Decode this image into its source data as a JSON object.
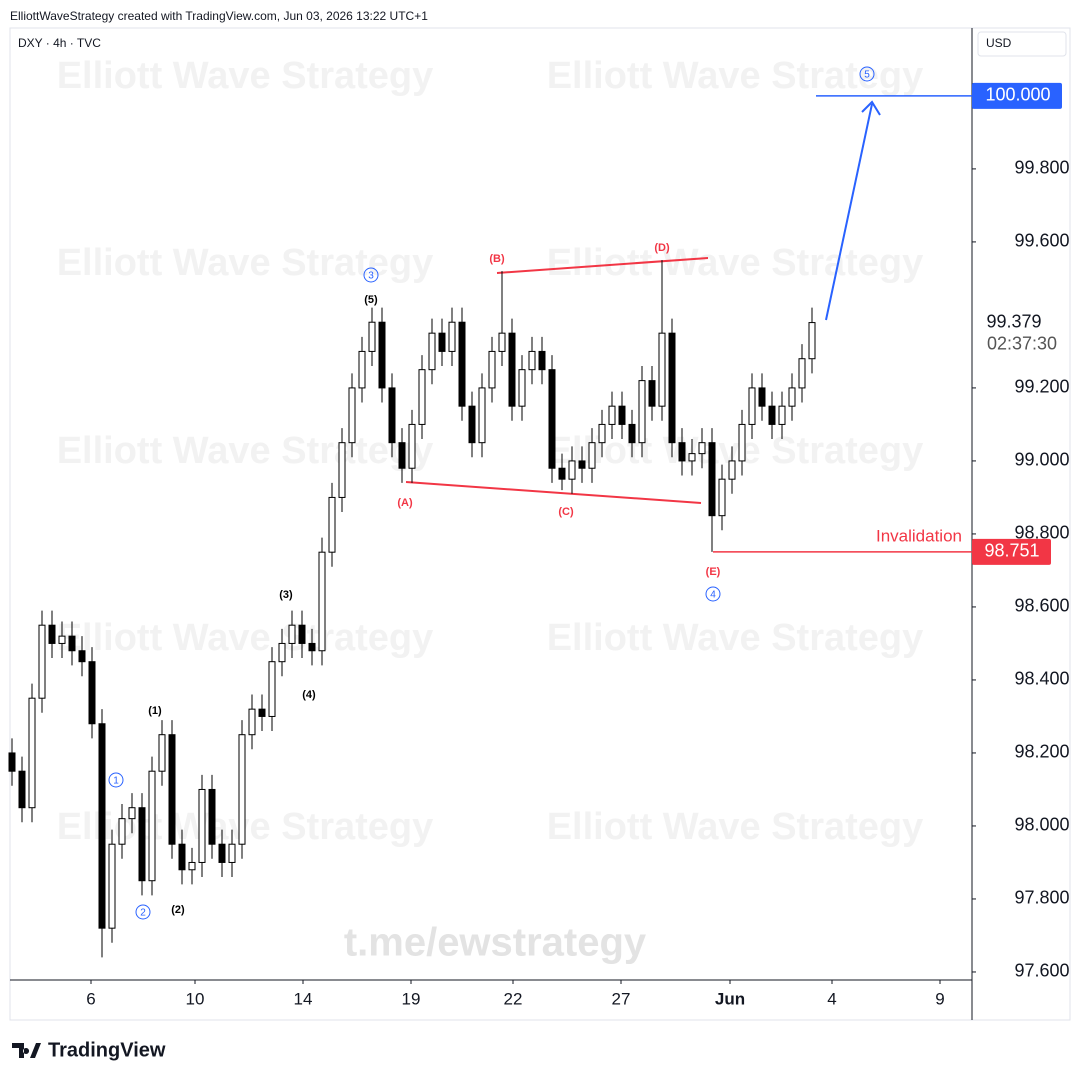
{
  "header": {
    "credit": "ElliottWaveStrategy created with TradingView.com, Jun 03, 2026 13:22 UTC+1",
    "symbol": "DXY · 4h · TVC",
    "currency": "USD",
    "countdown": "02:37:30",
    "logo": "TradingView"
  },
  "watermarks": {
    "text": "Elliott Wave Strategy",
    "link": "t.me/ewstrategy"
  },
  "chart_data": {
    "type": "candlestick",
    "x": [
      0,
      1,
      2,
      3,
      4,
      5,
      6,
      7,
      8,
      9,
      10,
      11,
      12,
      13,
      14,
      15,
      16,
      17,
      18,
      19,
      20,
      21,
      22,
      23,
      24,
      25,
      26,
      27,
      28,
      29,
      30,
      31,
      32,
      33,
      34,
      35,
      36,
      37,
      38,
      39,
      40,
      41,
      42,
      43,
      44,
      45,
      46,
      47,
      48,
      49,
      50,
      51,
      52,
      53,
      54,
      55,
      56,
      57,
      58,
      59,
      60,
      61,
      62,
      63,
      64,
      65,
      66,
      67,
      68,
      69,
      70,
      71,
      72,
      73,
      74,
      75,
      76,
      77,
      78,
      79,
      80
    ],
    "open": [
      98.2,
      98.15,
      98.05,
      98.35,
      98.55,
      98.5,
      98.52,
      98.48,
      98.45,
      98.28,
      97.72,
      97.95,
      98.02,
      98.05,
      97.85,
      98.15,
      98.25,
      97.95,
      97.88,
      97.9,
      98.1,
      97.95,
      97.9,
      97.95,
      98.25,
      98.32,
      98.3,
      98.45,
      98.5,
      98.55,
      98.5,
      98.48,
      98.75,
      98.9,
      99.05,
      99.2,
      99.3,
      99.38,
      99.2,
      99.05,
      98.98,
      99.1,
      99.25,
      99.35,
      99.3,
      99.38,
      99.15,
      99.05,
      99.2,
      99.3,
      99.35,
      99.15,
      99.25,
      99.3,
      99.25,
      98.98,
      98.95,
      99.0,
      98.98,
      99.05,
      99.1,
      99.15,
      99.1,
      99.05,
      99.22,
      99.15,
      99.35,
      99.05,
      99.0,
      99.02,
      99.05,
      98.85,
      98.95,
      99.0,
      99.1,
      99.2,
      99.15,
      99.1,
      99.15,
      99.2,
      99.28
    ],
    "high": [
      98.24,
      98.19,
      98.39,
      98.59,
      98.59,
      98.56,
      98.56,
      98.52,
      98.49,
      98.32,
      97.99,
      98.06,
      98.09,
      98.09,
      98.19,
      98.29,
      98.29,
      97.99,
      97.94,
      98.14,
      98.14,
      97.99,
      97.99,
      98.29,
      98.36,
      98.36,
      98.49,
      98.54,
      98.59,
      98.59,
      98.54,
      98.79,
      98.94,
      99.09,
      99.24,
      99.34,
      99.42,
      99.42,
      99.24,
      99.09,
      99.14,
      99.29,
      99.39,
      99.39,
      99.42,
      99.42,
      99.19,
      99.24,
      99.34,
      99.52,
      99.39,
      99.29,
      99.34,
      99.34,
      99.29,
      99.02,
      99.04,
      99.04,
      99.09,
      99.14,
      99.19,
      99.19,
      99.14,
      99.26,
      99.26,
      99.55,
      99.39,
      99.09,
      99.06,
      99.09,
      99.09,
      98.99,
      99.04,
      99.14,
      99.24,
      99.24,
      99.19,
      99.19,
      99.24,
      99.32,
      99.42
    ],
    "low": [
      98.11,
      98.01,
      98.01,
      98.31,
      98.46,
      98.46,
      98.44,
      98.41,
      98.24,
      97.64,
      97.68,
      97.91,
      97.98,
      97.81,
      97.81,
      98.11,
      97.91,
      97.84,
      97.84,
      97.86,
      97.91,
      97.86,
      97.86,
      97.91,
      98.21,
      98.26,
      98.26,
      98.41,
      98.46,
      98.46,
      98.44,
      98.44,
      98.71,
      98.86,
      99.01,
      99.16,
      99.26,
      99.16,
      99.01,
      98.94,
      98.94,
      99.06,
      99.21,
      99.26,
      99.26,
      99.11,
      99.01,
      99.01,
      99.16,
      99.26,
      99.11,
      99.11,
      99.21,
      99.21,
      98.94,
      98.92,
      98.91,
      98.94,
      98.94,
      99.01,
      99.06,
      99.06,
      99.01,
      99.01,
      99.11,
      99.11,
      99.01,
      98.96,
      98.96,
      98.98,
      98.751,
      98.81,
      98.91,
      98.96,
      99.06,
      99.11,
      99.06,
      99.06,
      99.11,
      99.16,
      99.24
    ],
    "close": [
      98.15,
      98.05,
      98.35,
      98.55,
      98.5,
      98.52,
      98.48,
      98.45,
      98.28,
      97.72,
      97.95,
      98.02,
      98.05,
      97.85,
      98.15,
      98.25,
      97.95,
      97.88,
      97.9,
      98.1,
      97.95,
      97.9,
      97.95,
      98.25,
      98.32,
      98.3,
      98.45,
      98.5,
      98.55,
      98.5,
      98.48,
      98.75,
      98.9,
      99.05,
      99.2,
      99.3,
      99.38,
      99.2,
      99.05,
      98.98,
      99.1,
      99.25,
      99.35,
      99.3,
      99.38,
      99.15,
      99.05,
      99.2,
      99.3,
      99.35,
      99.15,
      99.25,
      99.3,
      99.25,
      98.98,
      98.95,
      99.0,
      98.98,
      99.05,
      99.1,
      99.15,
      99.1,
      99.05,
      99.22,
      99.15,
      99.35,
      99.05,
      99.0,
      99.02,
      99.05,
      98.85,
      98.95,
      99.0,
      99.1,
      99.2,
      99.15,
      99.1,
      99.15,
      99.2,
      99.28,
      99.379
    ],
    "up_color": "#ffffff",
    "down_color": "#000000",
    "xlim": [
      -0.2,
      96
    ],
    "xticks": [
      {
        "value": 7.9,
        "label": "6"
      },
      {
        "value": 18.3,
        "label": "10"
      },
      {
        "value": 29.1,
        "label": "14"
      },
      {
        "value": 39.9,
        "label": "19"
      },
      {
        "value": 50.1,
        "label": "22"
      },
      {
        "value": 60.9,
        "label": "27"
      },
      {
        "value": 71.8,
        "label": "Jun"
      },
      {
        "value": 82.0,
        "label": "4"
      },
      {
        "value": 92.8,
        "label": "9"
      }
    ],
    "ylim": [
      97.578,
      100.186
    ],
    "yticks": [
      {
        "value": 97.6,
        "label": "97.600"
      },
      {
        "value": 97.8,
        "label": "97.800"
      },
      {
        "value": 98.0,
        "label": "98.000"
      },
      {
        "value": 98.2,
        "label": "98.200"
      },
      {
        "value": 98.4,
        "label": "98.400"
      },
      {
        "value": 98.6,
        "label": "98.600"
      },
      {
        "value": 98.8,
        "label": "98.800"
      },
      {
        "value": 99.0,
        "label": "99.000"
      },
      {
        "value": 99.2,
        "label": "99.200"
      },
      {
        "value": 99.6,
        "label": "99.600"
      },
      {
        "value": 99.8,
        "label": "99.800"
      }
    ],
    "grid": false,
    "target": {
      "value": 100,
      "label": "100.000"
    },
    "invalidation": {
      "label": "Invalidation",
      "value": 98.751
    },
    "wave_labels": [
      "3",
      "(5)",
      "1",
      "2",
      "(1)",
      "(2)",
      "(3)",
      "(4)",
      "(A)",
      "(B)",
      "(C)",
      "(D)",
      "(E)",
      "4",
      "5"
    ]
  }
}
